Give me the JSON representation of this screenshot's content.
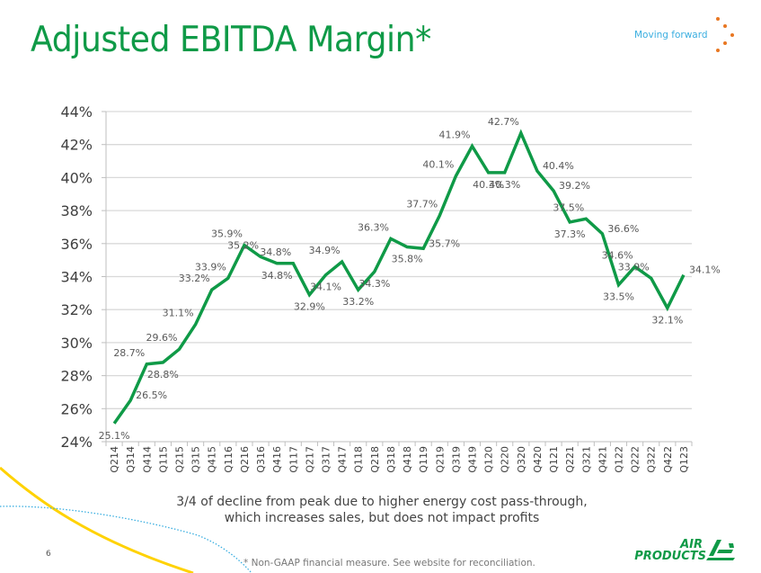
{
  "slide": {
    "title": "Adjusted EBITDA Margin*",
    "tagline": "Moving forward",
    "caption_line1": "3/4 of decline from peak due to higher energy cost pass-through,",
    "caption_line2": "which increases sales, but does not impact profits",
    "footnote": "* Non-GAAP financial measure. See website for reconciliation.",
    "page_number": "6",
    "logo_line1": "AIR",
    "logo_line2": "PRODUCTS"
  },
  "colors": {
    "title": "#0f9a47",
    "series_line": "#0f9a47",
    "tagline": "#3aaee0",
    "accent_dots": "#e87722",
    "deco_yellow": "#ffd200",
    "deco_blue": "#3aaee0",
    "gridline": "#d9d9d9",
    "label_text": "#595959"
  },
  "chart_data": {
    "type": "line",
    "title": "Adjusted EBITDA Margin*",
    "xlabel": "",
    "ylabel": "",
    "ylim": [
      24,
      44
    ],
    "y_ticks": [
      24,
      26,
      28,
      30,
      32,
      34,
      36,
      38,
      40,
      42,
      44
    ],
    "y_tick_format": "{v}%",
    "grid": true,
    "legend": "none",
    "categories": [
      "Q214",
      "Q314",
      "Q414",
      "Q115",
      "Q215",
      "Q315",
      "Q415",
      "Q116",
      "Q216",
      "Q316",
      "Q416",
      "Q117",
      "Q217",
      "Q317",
      "Q417",
      "Q118",
      "Q218",
      "Q318",
      "Q418",
      "Q119",
      "Q219",
      "Q319",
      "Q419",
      "Q120",
      "Q220",
      "Q320",
      "Q420",
      "Q121",
      "Q221",
      "Q321",
      "Q421",
      "Q122",
      "Q222",
      "Q322",
      "Q422",
      "Q123"
    ],
    "series": [
      {
        "name": "Adjusted EBITDA Margin",
        "values": [
          25.1,
          26.5,
          28.7,
          28.8,
          29.6,
          31.1,
          33.2,
          33.9,
          35.9,
          35.2,
          34.8,
          34.8,
          32.9,
          34.1,
          34.9,
          33.2,
          34.3,
          36.3,
          35.8,
          35.7,
          37.7,
          40.1,
          41.9,
          40.3,
          40.3,
          42.7,
          40.4,
          39.2,
          37.3,
          37.5,
          36.6,
          33.5,
          34.6,
          33.9,
          32.1,
          34.1
        ],
        "labels": [
          "25.1%",
          "26.5%",
          "28.7%",
          "28.8%",
          "29.6%",
          "31.1%",
          "33.2%",
          "33.9%",
          "35.9%",
          "35.2%",
          "34.8%",
          "34.8%",
          "32.9%",
          "34.1%",
          "34.9%",
          "33.2%",
          "34.3%",
          "36.3%",
          "35.8%",
          "35.7%",
          "37.7%",
          "40.1%",
          "41.9%",
          "40.3%",
          "40.3%",
          "42.7%",
          "40.4%",
          "39.2%",
          "37.3%",
          "37.5%",
          "36.6%",
          "33.5%",
          "34.6%",
          "33.9%",
          "32.1%",
          "34.1%"
        ],
        "label_position": [
          "below",
          "right",
          "above",
          "below",
          "above",
          "above",
          "above",
          "above",
          "above",
          "above",
          "below",
          "above",
          "below",
          "below",
          "above",
          "below",
          "below",
          "above",
          "below",
          "right",
          "above",
          "above",
          "above",
          "below",
          "below",
          "above",
          "right",
          "right",
          "below",
          "above",
          "right",
          "below",
          "above",
          "above",
          "below",
          "right"
        ]
      }
    ]
  }
}
